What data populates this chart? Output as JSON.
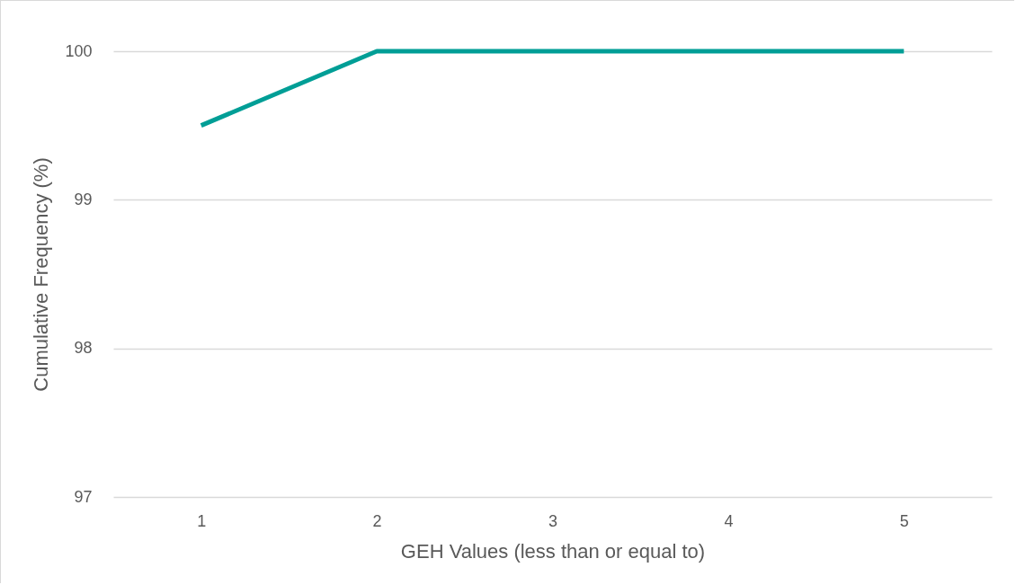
{
  "chart_data": {
    "type": "line",
    "xlabel": "GEH Values (less than or equal to)",
    "ylabel": "Cumulative Frequency (%)",
    "categories": [
      "1",
      "2",
      "3",
      "4",
      "5"
    ],
    "series": [
      {
        "color": "#009e96",
        "values": [
          99.5,
          100,
          100,
          100,
          100
        ]
      }
    ],
    "ylim": [
      97,
      100
    ],
    "yticks": [
      97,
      98,
      99,
      100
    ],
    "grid": "y"
  }
}
